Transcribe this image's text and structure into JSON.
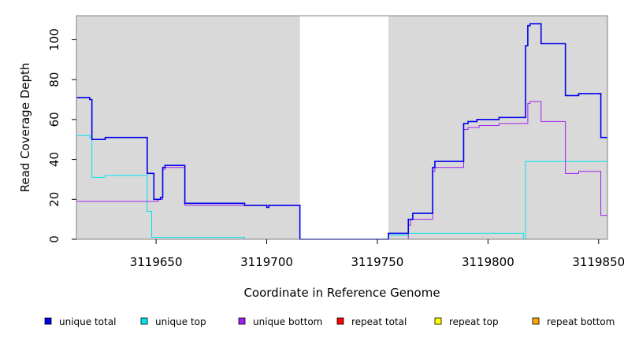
{
  "chart_data": {
    "type": "line",
    "title": "",
    "xlabel": "Coordinate in Reference Genome",
    "ylabel": "Read Coverage Depth",
    "xlim": [
      3119614,
      3119854
    ],
    "ylim": [
      0,
      112
    ],
    "xticks": [
      {
        "value": 3119650,
        "label": "3119650"
      },
      {
        "value": 3119700,
        "label": "3119700"
      },
      {
        "value": 3119750,
        "label": "3119750"
      },
      {
        "value": 3119800,
        "label": "3119800"
      },
      {
        "value": 3119850,
        "label": "3119850"
      }
    ],
    "yticks": [
      {
        "value": 0,
        "label": "0"
      },
      {
        "value": 20,
        "label": "20"
      },
      {
        "value": 40,
        "label": "40"
      },
      {
        "value": 60,
        "label": "60"
      },
      {
        "value": 80,
        "label": "80"
      },
      {
        "value": 100,
        "label": "100"
      }
    ],
    "shaded_regions": [
      {
        "x0": 3119614,
        "x1": 3119715,
        "color": "#d9d9d9"
      },
      {
        "x0": 3119755,
        "x1": 3119854,
        "color": "#d9d9d9"
      }
    ],
    "series": [
      {
        "name": "unique total",
        "color": "#0000ee",
        "points": [
          [
            3119614,
            71
          ],
          [
            3119620,
            71
          ],
          [
            3119620,
            70
          ],
          [
            3119621,
            70
          ],
          [
            3119621,
            50
          ],
          [
            3119627,
            50
          ],
          [
            3119627,
            51
          ],
          [
            3119646,
            51
          ],
          [
            3119646,
            33
          ],
          [
            3119649,
            33
          ],
          [
            3119649,
            20
          ],
          [
            3119652,
            20
          ],
          [
            3119652,
            21
          ],
          [
            3119653,
            21
          ],
          [
            3119653,
            36
          ],
          [
            3119654,
            36
          ],
          [
            3119654,
            37
          ],
          [
            3119663,
            37
          ],
          [
            3119663,
            18
          ],
          [
            3119690,
            18
          ],
          [
            3119690,
            17
          ],
          [
            3119700,
            17
          ],
          [
            3119700,
            16
          ],
          [
            3119701,
            16
          ],
          [
            3119701,
            17
          ],
          [
            3119715,
            17
          ],
          [
            3119715,
            0
          ],
          [
            3119755,
            0
          ],
          [
            3119755,
            3
          ],
          [
            3119764,
            3
          ],
          [
            3119764,
            10
          ],
          [
            3119766,
            10
          ],
          [
            3119766,
            13
          ],
          [
            3119775,
            13
          ],
          [
            3119775,
            36
          ],
          [
            3119776,
            36
          ],
          [
            3119776,
            39
          ],
          [
            3119789,
            39
          ],
          [
            3119789,
            58
          ],
          [
            3119791,
            58
          ],
          [
            3119791,
            59
          ],
          [
            3119795,
            59
          ],
          [
            3119795,
            60
          ],
          [
            3119805,
            60
          ],
          [
            3119805,
            61
          ],
          [
            3119817,
            61
          ],
          [
            3119817,
            97
          ],
          [
            3119818,
            97
          ],
          [
            3119818,
            107
          ],
          [
            3119819,
            107
          ],
          [
            3119819,
            108
          ],
          [
            3119824,
            108
          ],
          [
            3119824,
            98
          ],
          [
            3119835,
            98
          ],
          [
            3119835,
            72
          ],
          [
            3119841,
            72
          ],
          [
            3119841,
            73
          ],
          [
            3119851,
            73
          ],
          [
            3119851,
            51
          ],
          [
            3119854,
            51
          ]
        ]
      },
      {
        "name": "unique top",
        "color": "#00e5ee",
        "points": [
          [
            3119614,
            52
          ],
          [
            3119620,
            52
          ],
          [
            3119620,
            51
          ],
          [
            3119621,
            51
          ],
          [
            3119621,
            31
          ],
          [
            3119627,
            31
          ],
          [
            3119627,
            32
          ],
          [
            3119646,
            32
          ],
          [
            3119646,
            14
          ],
          [
            3119648,
            14
          ],
          [
            3119648,
            1
          ],
          [
            3119690,
            1
          ],
          [
            3119690,
            0
          ],
          [
            3119755,
            0
          ],
          [
            3119755,
            2
          ],
          [
            3119764,
            2
          ],
          [
            3119764,
            3
          ],
          [
            3119816,
            3
          ],
          [
            3119816,
            0
          ],
          [
            3119817,
            0
          ],
          [
            3119817,
            39
          ],
          [
            3119854,
            39
          ]
        ]
      },
      {
        "name": "unique bottom",
        "color": "#a020f0",
        "points": [
          [
            3119614,
            19
          ],
          [
            3119651,
            19
          ],
          [
            3119651,
            20
          ],
          [
            3119653,
            20
          ],
          [
            3119653,
            35
          ],
          [
            3119654,
            35
          ],
          [
            3119654,
            36
          ],
          [
            3119663,
            36
          ],
          [
            3119663,
            17
          ],
          [
            3119715,
            17
          ],
          [
            3119715,
            0
          ],
          [
            3119764,
            0
          ],
          [
            3119764,
            7
          ],
          [
            3119765,
            7
          ],
          [
            3119765,
            10
          ],
          [
            3119775,
            10
          ],
          [
            3119775,
            34
          ],
          [
            3119776,
            34
          ],
          [
            3119776,
            36
          ],
          [
            3119789,
            36
          ],
          [
            3119789,
            55
          ],
          [
            3119791,
            55
          ],
          [
            3119791,
            56
          ],
          [
            3119796,
            56
          ],
          [
            3119796,
            57
          ],
          [
            3119805,
            57
          ],
          [
            3119805,
            58
          ],
          [
            3119818,
            58
          ],
          [
            3119818,
            68
          ],
          [
            3119819,
            68
          ],
          [
            3119819,
            69
          ],
          [
            3119824,
            69
          ],
          [
            3119824,
            59
          ],
          [
            3119835,
            59
          ],
          [
            3119835,
            33
          ],
          [
            3119841,
            33
          ],
          [
            3119841,
            34
          ],
          [
            3119851,
            34
          ],
          [
            3119851,
            12
          ],
          [
            3119854,
            12
          ]
        ]
      },
      {
        "name": "repeat total",
        "color": "#ff0000",
        "points": [
          [
            3119614,
            0
          ],
          [
            3119854,
            0
          ]
        ]
      },
      {
        "name": "repeat top",
        "color": "#ffff00",
        "points": [
          [
            3119614,
            0
          ],
          [
            3119854,
            0
          ]
        ]
      },
      {
        "name": "repeat bottom",
        "color": "#ffa500",
        "points": [
          [
            3119614,
            0
          ],
          [
            3119854,
            0
          ]
        ]
      }
    ],
    "legend": {
      "placement": "bottom",
      "entries": [
        {
          "label": "unique total",
          "color": "#0000ee"
        },
        {
          "label": "unique top",
          "color": "#00e5ee"
        },
        {
          "label": "unique bottom",
          "color": "#a020f0"
        },
        {
          "label": "repeat total",
          "color": "#ff0000"
        },
        {
          "label": "repeat top",
          "color": "#ffff00"
        },
        {
          "label": "repeat bottom",
          "color": "#ffa500"
        }
      ]
    },
    "grid": false
  }
}
